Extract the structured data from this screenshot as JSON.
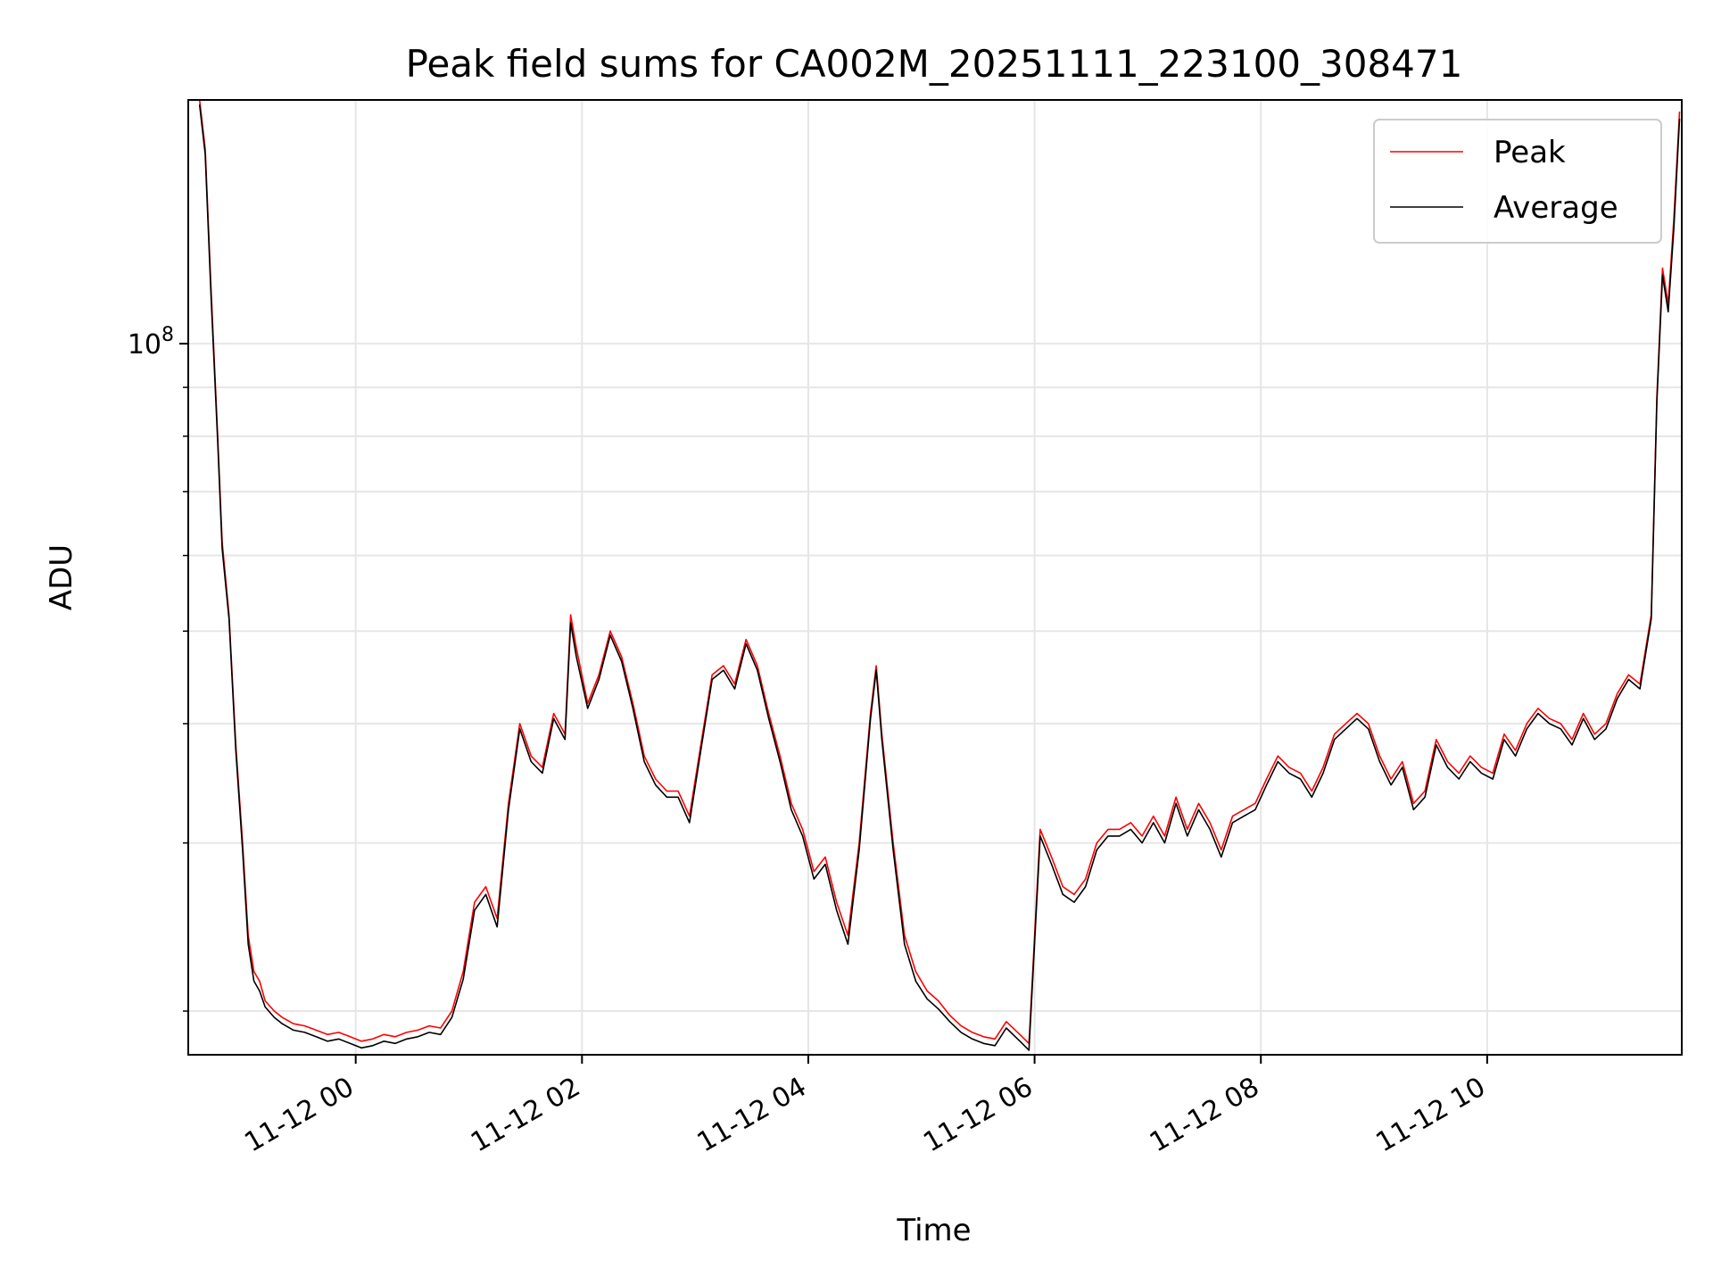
{
  "chart_data": {
    "type": "line",
    "title": "Peak field sums for CA002M_20251111_223100_308471",
    "xlabel": "Time",
    "ylabel": "ADU",
    "yscale": "log",
    "ylim": [
      18000000,
      180000000
    ],
    "y_major_ticks": [
      {
        "value": 100000000,
        "base": "10",
        "exp": "8"
      }
    ],
    "y_minor_ticks": [
      20000000,
      30000000,
      40000000,
      50000000,
      60000000,
      70000000,
      80000000,
      90000000,
      200000000
    ],
    "x_unit": "hours since 11-12 00:00",
    "xlim": [
      -1.48,
      11.72
    ],
    "x_ticks": [
      {
        "value": 0,
        "label": "11-12 00"
      },
      {
        "value": 2,
        "label": "11-12 02"
      },
      {
        "value": 4,
        "label": "11-12 04"
      },
      {
        "value": 6,
        "label": "11-12 06"
      },
      {
        "value": 8,
        "label": "11-12 08"
      },
      {
        "value": 10,
        "label": "11-12 10"
      }
    ],
    "grid": true,
    "legend_position": "top-right",
    "series": [
      {
        "name": "Peak",
        "color": "#ff0000",
        "x": [
          -1.38,
          -1.33,
          -1.28,
          -1.22,
          -1.18,
          -1.12,
          -1.06,
          -1.0,
          -0.95,
          -0.9,
          -0.85,
          -0.8,
          -0.72,
          -0.65,
          -0.55,
          -0.45,
          -0.35,
          -0.25,
          -0.15,
          -0.05,
          0.05,
          0.15,
          0.25,
          0.35,
          0.45,
          0.55,
          0.65,
          0.75,
          0.85,
          0.95,
          1.05,
          1.15,
          1.25,
          1.35,
          1.45,
          1.55,
          1.65,
          1.75,
          1.85,
          1.9,
          1.95,
          2.05,
          2.15,
          2.25,
          2.35,
          2.45,
          2.55,
          2.65,
          2.75,
          2.85,
          2.95,
          3.05,
          3.15,
          3.25,
          3.35,
          3.45,
          3.55,
          3.65,
          3.75,
          3.85,
          3.95,
          4.05,
          4.15,
          4.25,
          4.35,
          4.45,
          4.55,
          4.6,
          4.65,
          4.75,
          4.85,
          4.95,
          5.05,
          5.15,
          5.25,
          5.35,
          5.45,
          5.55,
          5.65,
          5.75,
          5.85,
          5.95,
          6.05,
          6.15,
          6.25,
          6.35,
          6.45,
          6.55,
          6.65,
          6.75,
          6.85,
          6.95,
          7.05,
          7.15,
          7.25,
          7.35,
          7.45,
          7.55,
          7.65,
          7.75,
          7.85,
          7.95,
          8.05,
          8.15,
          8.25,
          8.35,
          8.45,
          8.55,
          8.65,
          8.75,
          8.85,
          8.95,
          9.05,
          9.15,
          9.25,
          9.35,
          9.45,
          9.55,
          9.65,
          9.75,
          9.85,
          9.95,
          10.05,
          10.15,
          10.25,
          10.35,
          10.45,
          10.55,
          10.65,
          10.75,
          10.85,
          10.95,
          11.05,
          11.15,
          11.25,
          11.35,
          11.45,
          11.5,
          11.55,
          11.6,
          11.65,
          11.7
        ],
        "values": [
          180000000,
          160000000,
          115000000,
          80000000,
          62000000,
          52000000,
          38000000,
          30000000,
          24000000,
          22000000,
          21500000,
          20500000,
          20000000,
          19700000,
          19400000,
          19300000,
          19100000,
          18900000,
          19000000,
          18800000,
          18600000,
          18700000,
          18900000,
          18800000,
          19000000,
          19100000,
          19300000,
          19200000,
          20000000,
          22000000,
          26000000,
          27000000,
          25000000,
          33000000,
          40000000,
          37000000,
          36000000,
          41000000,
          39000000,
          52000000,
          48000000,
          42000000,
          45000000,
          50000000,
          47000000,
          42000000,
          37000000,
          35000000,
          34000000,
          34000000,
          32000000,
          38000000,
          45000000,
          46000000,
          44000000,
          49000000,
          46000000,
          41000000,
          37000000,
          33000000,
          31000000,
          28000000,
          29000000,
          26000000,
          24000000,
          30000000,
          41000000,
          46000000,
          39000000,
          30000000,
          24000000,
          22000000,
          21000000,
          20500000,
          19800000,
          19300000,
          19000000,
          18800000,
          18700000,
          19500000,
          19000000,
          18500000,
          31000000,
          29000000,
          27000000,
          26500000,
          27500000,
          30000000,
          31000000,
          31000000,
          31500000,
          30500000,
          32000000,
          30500000,
          33500000,
          31000000,
          33000000,
          31500000,
          29500000,
          32000000,
          32500000,
          33000000,
          35000000,
          37000000,
          36000000,
          35500000,
          34000000,
          36000000,
          39000000,
          40000000,
          41000000,
          40000000,
          37000000,
          35000000,
          36500000,
          33000000,
          34000000,
          38500000,
          36500000,
          35500000,
          37000000,
          36000000,
          35500000,
          39000000,
          37500000,
          40000000,
          41500000,
          40500000,
          40000000,
          38500000,
          41000000,
          39000000,
          40000000,
          43000000,
          45000000,
          44000000,
          52000000,
          88000000,
          120000000,
          110000000,
          135000000,
          175000000
        ]
      },
      {
        "name": "Average",
        "color": "#000000",
        "x": [
          -1.38,
          -1.33,
          -1.28,
          -1.22,
          -1.18,
          -1.12,
          -1.06,
          -1.0,
          -0.95,
          -0.9,
          -0.85,
          -0.8,
          -0.72,
          -0.65,
          -0.55,
          -0.45,
          -0.35,
          -0.25,
          -0.15,
          -0.05,
          0.05,
          0.15,
          0.25,
          0.35,
          0.45,
          0.55,
          0.65,
          0.75,
          0.85,
          0.95,
          1.05,
          1.15,
          1.25,
          1.35,
          1.45,
          1.55,
          1.65,
          1.75,
          1.85,
          1.9,
          1.95,
          2.05,
          2.15,
          2.25,
          2.35,
          2.45,
          2.55,
          2.65,
          2.75,
          2.85,
          2.95,
          3.05,
          3.15,
          3.25,
          3.35,
          3.45,
          3.55,
          3.65,
          3.75,
          3.85,
          3.95,
          4.05,
          4.15,
          4.25,
          4.35,
          4.45,
          4.55,
          4.6,
          4.65,
          4.75,
          4.85,
          4.95,
          5.05,
          5.15,
          5.25,
          5.35,
          5.45,
          5.55,
          5.65,
          5.75,
          5.85,
          5.95,
          6.05,
          6.15,
          6.25,
          6.35,
          6.45,
          6.55,
          6.65,
          6.75,
          6.85,
          6.95,
          7.05,
          7.15,
          7.25,
          7.35,
          7.45,
          7.55,
          7.65,
          7.75,
          7.85,
          7.95,
          8.05,
          8.15,
          8.25,
          8.35,
          8.45,
          8.55,
          8.65,
          8.75,
          8.85,
          8.95,
          9.05,
          9.15,
          9.25,
          9.35,
          9.45,
          9.55,
          9.65,
          9.75,
          9.85,
          9.95,
          10.05,
          10.15,
          10.25,
          10.35,
          10.45,
          10.55,
          10.65,
          10.75,
          10.85,
          10.95,
          11.05,
          11.15,
          11.25,
          11.35,
          11.45,
          11.5,
          11.55,
          11.6,
          11.65,
          11.7
        ],
        "values": [
          178000000,
          158000000,
          113000000,
          79000000,
          61000000,
          51500000,
          37500000,
          29500000,
          23500000,
          21500000,
          21000000,
          20200000,
          19700000,
          19400000,
          19100000,
          19000000,
          18800000,
          18600000,
          18700000,
          18500000,
          18300000,
          18400000,
          18600000,
          18500000,
          18700000,
          18800000,
          19000000,
          18900000,
          19700000,
          21600000,
          25500000,
          26500000,
          24500000,
          32500000,
          39500000,
          36500000,
          35500000,
          40500000,
          38500000,
          51000000,
          47000000,
          41500000,
          44500000,
          49500000,
          46500000,
          41500000,
          36500000,
          34500000,
          33500000,
          33500000,
          31500000,
          37500000,
          44500000,
          45500000,
          43500000,
          48500000,
          45500000,
          40500000,
          36500000,
          32500000,
          30500000,
          27500000,
          28500000,
          25500000,
          23500000,
          29500000,
          40500000,
          45500000,
          38500000,
          29500000,
          23500000,
          21500000,
          20600000,
          20100000,
          19500000,
          19000000,
          18700000,
          18500000,
          18400000,
          19200000,
          18700000,
          18200000,
          30500000,
          28500000,
          26500000,
          26000000,
          27000000,
          29500000,
          30500000,
          30500000,
          31000000,
          30000000,
          31500000,
          30000000,
          33000000,
          30500000,
          32500000,
          31000000,
          29000000,
          31500000,
          32000000,
          32500000,
          34500000,
          36500000,
          35500000,
          35000000,
          33500000,
          35500000,
          38500000,
          39500000,
          40500000,
          39500000,
          36500000,
          34500000,
          36000000,
          32500000,
          33500000,
          38000000,
          36000000,
          35000000,
          36500000,
          35500000,
          35000000,
          38500000,
          37000000,
          39500000,
          41000000,
          40000000,
          39500000,
          38000000,
          40500000,
          38500000,
          39500000,
          42500000,
          44500000,
          43500000,
          51500000,
          87000000,
          118000000,
          108000000,
          132000000,
          172000000
        ]
      }
    ]
  }
}
